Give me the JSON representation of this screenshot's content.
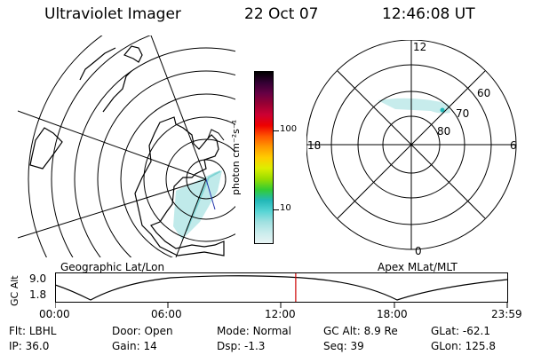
{
  "header": {
    "instrument": "Ultraviolet Imager",
    "date": "22 Oct 07",
    "time": "12:46:08 UT"
  },
  "left_panel": {
    "label": "Geographic Lat/Lon"
  },
  "right_panel": {
    "label": "Apex MLat/MLT",
    "mlt_labels": [
      "12",
      "18",
      "6",
      "0"
    ],
    "mlat_labels": [
      "60",
      "70",
      "80"
    ]
  },
  "colorbar": {
    "unit_label": "photon cm⁻²s⁻¹",
    "tick_labels": [
      "100",
      "10"
    ],
    "scale": "log",
    "colors": [
      "#e8f4f4",
      "#c9ecec",
      "#9fe0e0",
      "#55d4d4",
      "#22b8b8",
      "#33cc33",
      "#99dd00",
      "#ddee00",
      "#ffcc00",
      "#ff9900",
      "#ff5500",
      "#ee0000",
      "#cc0033",
      "#990033",
      "#660044",
      "#330033",
      "#000000"
    ]
  },
  "altitude_plot": {
    "ylabel": "GC Alt",
    "y_ticks": [
      "9.0",
      "1.8"
    ],
    "x_ticks": [
      "00:00",
      "06:00",
      "12:00",
      "18:00",
      "23:59"
    ],
    "marker_time": "12:46",
    "marker_color": "#cc0000"
  },
  "info": {
    "filter_label": "Flt:",
    "filter_value": "LBHL",
    "door_label": "Door:",
    "door_value": "Open",
    "mode_label": "Mode:",
    "mode_value": "Normal",
    "gcalt_label": "GC Alt:",
    "gcalt_value": "8.9 Re",
    "glat_label": "GLat:",
    "glat_value": "-62.1",
    "ip_label": "IP:",
    "ip_value": "36.0",
    "gain_label": "Gain:",
    "gain_value": "14",
    "dsp_label": "Dsp:",
    "dsp_value": "-1.3",
    "seq_label": "Seq:",
    "seq_value": "39",
    "glon_label": "GLon:",
    "glon_value": "125.8"
  }
}
